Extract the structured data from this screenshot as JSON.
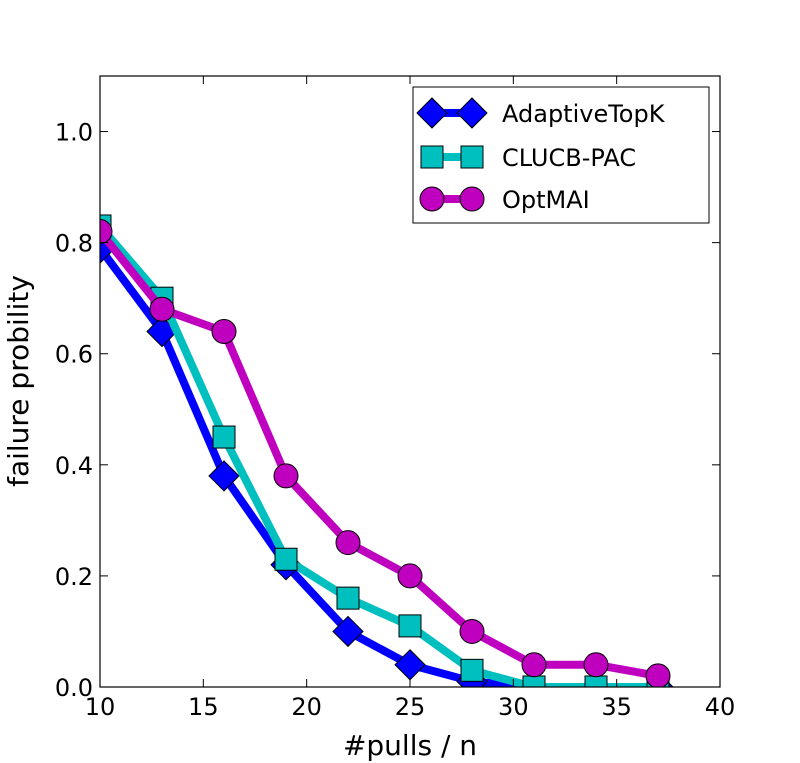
{
  "chart_data": {
    "type": "line",
    "xlabel": "#pulls / n",
    "ylabel": "failure probility",
    "xlim": [
      10,
      40
    ],
    "ylim": [
      0,
      1.1
    ],
    "xticks": [
      10,
      15,
      20,
      25,
      30,
      35,
      40
    ],
    "yticks": [
      0.0,
      0.2,
      0.4,
      0.6,
      0.8,
      1.0
    ],
    "xtick_labels": [
      "10",
      "15",
      "20",
      "25",
      "30",
      "35",
      "40"
    ],
    "ytick_labels": [
      "0.0",
      "0.2",
      "0.4",
      "0.6",
      "0.8",
      "1.0"
    ],
    "grid": false,
    "legend_position": "top-right",
    "series": [
      {
        "name": "AdaptiveTopK",
        "color": "#0000ff",
        "marker": "diamond",
        "x": [
          10,
          13,
          16,
          19,
          22,
          25,
          28,
          31,
          34,
          37
        ],
        "y": [
          0.79,
          0.64,
          0.38,
          0.22,
          0.1,
          0.04,
          0.01,
          0.0,
          0.0,
          0.0
        ]
      },
      {
        "name": "CLUCB-PAC",
        "color": "#00bfbf",
        "marker": "square",
        "x": [
          10,
          13,
          16,
          19,
          22,
          25,
          28,
          31,
          34,
          37
        ],
        "y": [
          0.83,
          0.7,
          0.45,
          0.23,
          0.16,
          0.11,
          0.03,
          0.0,
          0.0,
          0.0
        ]
      },
      {
        "name": "OptMAI",
        "color": "#bf00bf",
        "marker": "circle",
        "x": [
          10,
          13,
          16,
          19,
          22,
          25,
          28,
          31,
          34,
          37
        ],
        "y": [
          0.82,
          0.68,
          0.64,
          0.38,
          0.26,
          0.2,
          0.1,
          0.04,
          0.04,
          0.02
        ]
      }
    ]
  }
}
